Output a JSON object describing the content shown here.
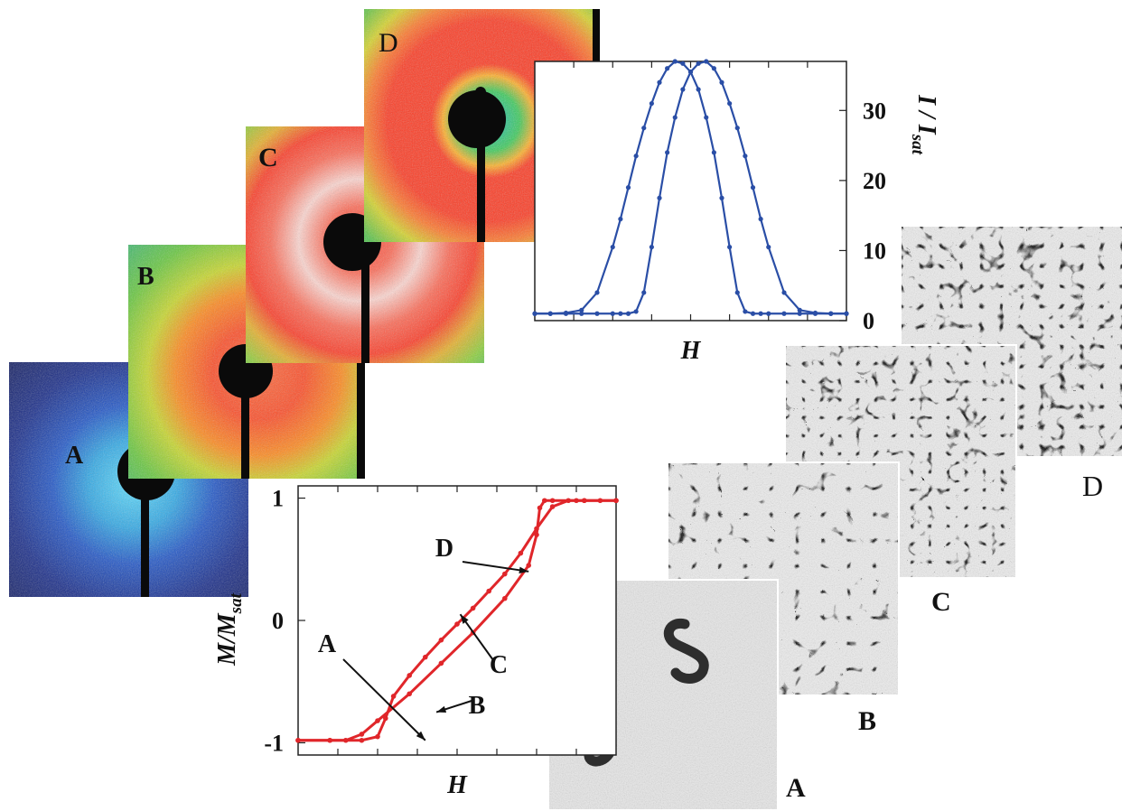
{
  "scattering_labels": [
    "A",
    "B",
    "C",
    "D"
  ],
  "domain_labels": [
    "A",
    "B",
    "C",
    "D"
  ],
  "colors": {
    "intensity_curve": "#2a4ea6",
    "magnetization_curve": "#e0262a",
    "beamstop": "#0a0a0a"
  },
  "chart_data": [
    {
      "type": "line",
      "title": "",
      "xlabel": "H",
      "ylabel": "I/I_sat",
      "ylabel_main": "I / I",
      "ylabel_sub": "sat",
      "ylim": [
        0,
        37
      ],
      "yticks": [
        "0",
        "10",
        "20",
        "30"
      ],
      "ytick_values": [
        0,
        10,
        20,
        30
      ],
      "xlim": [
        -1,
        1
      ],
      "grid": false,
      "series": [
        {
          "x": [
            -1.0,
            -0.9,
            -0.8,
            -0.7,
            -0.6,
            -0.5,
            -0.45,
            -0.4,
            -0.35,
            -0.3,
            -0.25,
            -0.2,
            -0.15,
            -0.1,
            -0.05,
            0.0,
            0.05,
            0.1,
            0.15,
            0.2,
            0.25,
            0.3,
            0.35,
            0.4,
            0.45,
            0.5,
            0.6,
            0.7,
            0.8,
            0.9,
            1.0
          ],
          "values": [
            1.0,
            1.0,
            1.1,
            1.5,
            4.0,
            10.5,
            14.5,
            19.0,
            23.5,
            27.5,
            31.0,
            34.0,
            36.0,
            37.0,
            36.7,
            35.5,
            33.0,
            29.0,
            24.0,
            17.5,
            10.5,
            4.0,
            1.3,
            1.0,
            1.0,
            1.0,
            1.0,
            1.0,
            1.0,
            1.0,
            1.0
          ]
        },
        {
          "x": [
            -1.0,
            -0.9,
            -0.8,
            -0.7,
            -0.6,
            -0.5,
            -0.45,
            -0.4,
            -0.35,
            -0.3,
            -0.25,
            -0.2,
            -0.15,
            -0.1,
            -0.05,
            0.0,
            0.05,
            0.1,
            0.15,
            0.2,
            0.25,
            0.3,
            0.35,
            0.4,
            0.45,
            0.5,
            0.6,
            0.7,
            0.8,
            0.9,
            1.0
          ],
          "values": [
            1.0,
            1.0,
            1.0,
            1.0,
            1.0,
            1.0,
            1.0,
            1.0,
            1.3,
            4.0,
            10.5,
            17.5,
            24.0,
            29.0,
            33.0,
            35.5,
            36.7,
            37.0,
            36.0,
            34.0,
            31.0,
            27.5,
            23.5,
            19.0,
            14.5,
            10.5,
            4.0,
            1.5,
            1.1,
            1.0,
            1.0
          ]
        }
      ]
    },
    {
      "type": "line",
      "title": "",
      "xlabel": "H",
      "ylabel": "M/M_sat",
      "ylabel_main": "M/M",
      "ylabel_sub": "sat",
      "ylim": [
        -1.1,
        1.1
      ],
      "yticks": [
        "1",
        "0",
        "-1"
      ],
      "ytick_values": [
        1,
        0,
        -1
      ],
      "xlim": [
        -1,
        1
      ],
      "grid": false,
      "series": [
        {
          "x": [
            -1.0,
            -0.8,
            -0.6,
            -0.5,
            -0.45,
            -0.4,
            -0.3,
            -0.2,
            -0.1,
            0.0,
            0.1,
            0.2,
            0.3,
            0.4,
            0.5,
            0.6,
            0.7,
            0.75,
            0.8,
            0.9,
            1.0
          ],
          "values": [
            -0.98,
            -0.98,
            -0.98,
            -0.95,
            -0.8,
            -0.62,
            -0.45,
            -0.3,
            -0.16,
            -0.03,
            0.1,
            0.24,
            0.38,
            0.55,
            0.75,
            0.93,
            0.98,
            0.98,
            0.98,
            0.98,
            0.98
          ]
        },
        {
          "x": [
            -1.0,
            -0.8,
            -0.7,
            -0.6,
            -0.5,
            -0.3,
            -0.1,
            0.1,
            0.3,
            0.45,
            0.5,
            0.52,
            0.55,
            0.6,
            0.8,
            1.0
          ],
          "values": [
            -0.98,
            -0.98,
            -0.98,
            -0.93,
            -0.82,
            -0.6,
            -0.35,
            -0.1,
            0.18,
            0.45,
            0.7,
            0.92,
            0.98,
            0.98,
            0.98,
            0.98
          ]
        }
      ],
      "annotations": [
        {
          "label": "A",
          "x": -0.2,
          "y": -0.98
        },
        {
          "label": "B",
          "x": -0.13,
          "y": -0.75
        },
        {
          "label": "C",
          "x": 0.02,
          "y": 0.05
        },
        {
          "label": "D",
          "x": 0.45,
          "y": 0.4
        }
      ]
    }
  ]
}
